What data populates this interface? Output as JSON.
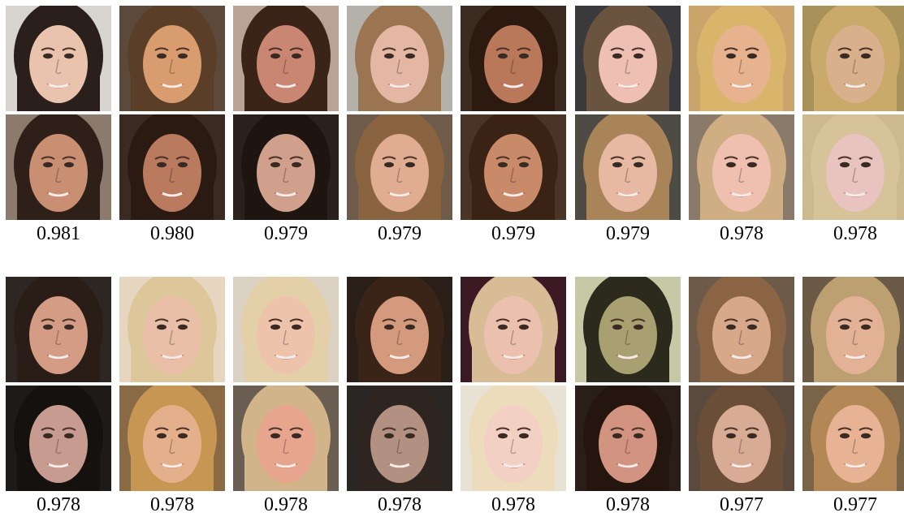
{
  "figure": {
    "groups": [
      {
        "pairs": [
          {
            "score": "0.981",
            "top": {
              "hair": "#2a1f1a",
              "skin": "#e9c3ad",
              "bg": "#d8d4d0"
            },
            "bottom": {
              "hair": "#2e2018",
              "skin": "#c98f72",
              "bg": "#8c7a6c"
            }
          },
          {
            "score": "0.980",
            "top": {
              "hair": "#5a3e28",
              "skin": "#d99c6e",
              "bg": "#5b4a3c"
            },
            "bottom": {
              "hair": "#2b1a12",
              "skin": "#b97a5e",
              "bg": "#3b2a22"
            }
          },
          {
            "score": "0.979",
            "top": {
              "hair": "#3a2418",
              "skin": "#c98672",
              "bg": "#b9a394"
            },
            "bottom": {
              "hair": "#1e1410",
              "skin": "#d0a08c",
              "bg": "#2a201c"
            }
          },
          {
            "score": "0.979",
            "top": {
              "hair": "#9b7552",
              "skin": "#e3b7a3",
              "bg": "#b4b0aa"
            },
            "bottom": {
              "hair": "#8a6440",
              "skin": "#e0ad92",
              "bg": "#6f5b4a"
            }
          },
          {
            "score": "0.979",
            "top": {
              "hair": "#2c1a10",
              "skin": "#b9785a",
              "bg": "#3a2a20"
            },
            "bottom": {
              "hair": "#3a2214",
              "skin": "#c98a6a",
              "bg": "#4a3426"
            }
          },
          {
            "score": "0.979",
            "top": {
              "hair": "#6a5440",
              "skin": "#eec0b4",
              "bg": "#3a3a3c"
            },
            "bottom": {
              "hair": "#a88458",
              "skin": "#e7b9a3",
              "bg": "#4e4a44"
            }
          },
          {
            "score": "0.978",
            "top": {
              "hair": "#d9b56c",
              "skin": "#e7b28e",
              "bg": "#caa46a"
            },
            "bottom": {
              "hair": "#cfae84",
              "skin": "#efbfb0",
              "bg": "#8a7a6a"
            }
          },
          {
            "score": "0.978",
            "top": {
              "hair": "#c9aa6a",
              "skin": "#d8b08c",
              "bg": "#a8925a"
            },
            "bottom": {
              "hair": "#d7c39a",
              "skin": "#e9c3bf",
              "bg": "#cdb98f"
            }
          }
        ]
      },
      {
        "pairs": [
          {
            "score": "0.978",
            "top": {
              "hair": "#2a1c16",
              "skin": "#d49c84",
              "bg": "#2e2622"
            },
            "bottom": {
              "hair": "#15110f",
              "skin": "#c79b8f",
              "bg": "#1e1a18"
            }
          },
          {
            "score": "0.978",
            "top": {
              "hair": "#ddc79a",
              "skin": "#e9bfa8",
              "bg": "#e6d6c0"
            },
            "bottom": {
              "hair": "#c79652",
              "skin": "#e4b08c",
              "bg": "#8a6a44"
            }
          },
          {
            "score": "0.978",
            "top": {
              "hair": "#e4d0a8",
              "skin": "#eec3ac",
              "bg": "#dcd2c4"
            },
            "bottom": {
              "hair": "#d2b48a",
              "skin": "#e8a58e",
              "bg": "#6a5e52"
            }
          },
          {
            "score": "0.978",
            "top": {
              "hair": "#3a2418",
              "skin": "#d49a7e",
              "bg": "#2a1e18"
            },
            "bottom": {
              "hair": "#2e2420",
              "skin": "#b29082",
              "bg": "#2a2624"
            }
          },
          {
            "score": "0.978",
            "top": {
              "hair": "#d8bc96",
              "skin": "#ebc0ae",
              "bg": "#3c1a24"
            },
            "bottom": {
              "hair": "#ecdcbc",
              "skin": "#f2d0c4",
              "bg": "#e8e2d4"
            }
          },
          {
            "score": "0.978",
            "top": {
              "hair": "#2c2a1c",
              "skin": "#a8a070",
              "bg": "#c7c8a6"
            },
            "bottom": {
              "hair": "#24160f",
              "skin": "#d29480",
              "bg": "#2a1e18"
            }
          },
          {
            "score": "0.977",
            "top": {
              "hair": "#8a6444",
              "skin": "#d8a88a",
              "bg": "#6e5a48"
            },
            "bottom": {
              "hair": "#6b4e38",
              "skin": "#d8ab94",
              "bg": "#5a4a3e"
            }
          },
          {
            "score": "0.977",
            "top": {
              "hair": "#bca072",
              "skin": "#e3b296",
              "bg": "#6a5a46"
            },
            "bottom": {
              "hair": "#b48856",
              "skin": "#e7b394",
              "bg": "#7a6448"
            }
          }
        ]
      }
    ]
  }
}
